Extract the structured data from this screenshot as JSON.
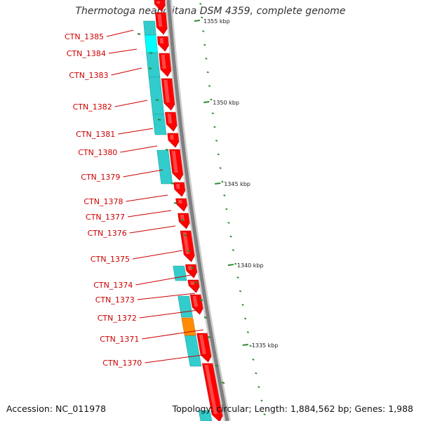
{
  "title": "Thermotoga neapolitana DSM 4359, complete genome",
  "accession": "Accession: NC_011978",
  "topology": "Topology: circular; Length: 1,884,562 bp; Genes: 1,988",
  "colors": {
    "forward_gene": "#ff0000",
    "cds_feature": "#33cccc",
    "cds_highlight": "#00ffff",
    "orange_feature": "#ff8c00",
    "label": "#cc0000",
    "tick": "#2e8b2e",
    "backbone": "#808080"
  },
  "scale_labels": [
    {
      "name": "tick-1355",
      "text": "1355 kbp"
    },
    {
      "name": "tick-1350",
      "text": "1350 kbp"
    },
    {
      "name": "tick-1345",
      "text": "1345 kbp"
    },
    {
      "name": "tick-1340",
      "text": "1340 kbp"
    },
    {
      "name": "tick-1335",
      "text": "1335 kbp"
    }
  ],
  "genes": [
    "CTN_1385",
    "CTN_1384",
    "CTN_1383",
    "CTN_1382",
    "CTN_1381",
    "CTN_1380",
    "CTN_1379",
    "CTN_1378",
    "CTN_1377",
    "CTN_1376",
    "CTN_1375",
    "CTN_1374",
    "CTN_1373",
    "CTN_1372",
    "CTN_1371",
    "CTN_1370"
  ]
}
